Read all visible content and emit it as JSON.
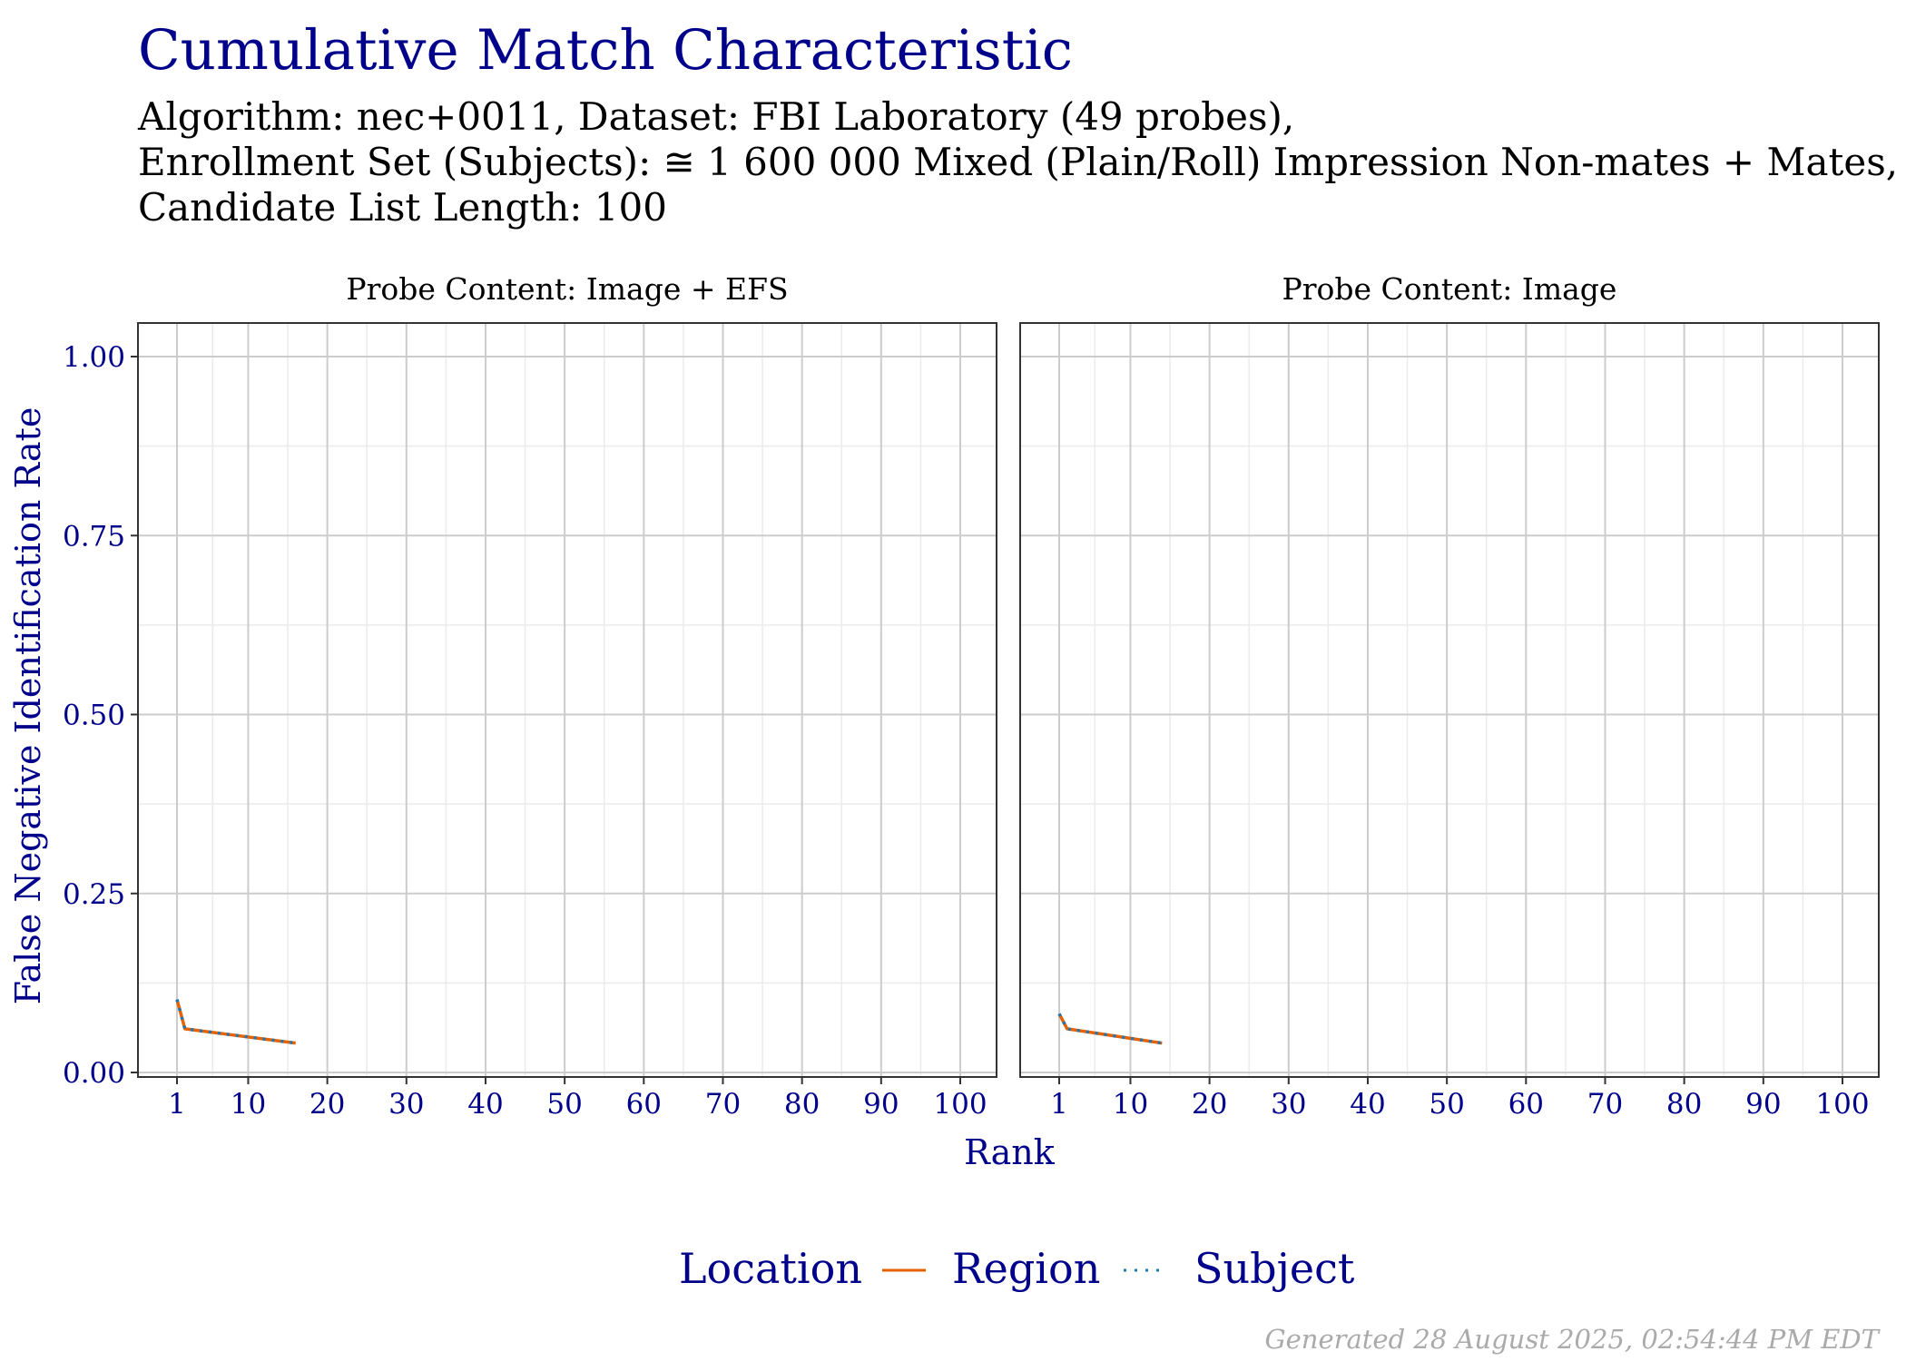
{
  "title": "Cumulative Match Characteristic",
  "subtitle_lines": [
    "Algorithm: nec+0011, Dataset: FBI Laboratory (49 probes),",
    "Enrollment Set (Subjects): ≅ 1 600 000 Mixed (Plain/Roll) Impression Non-mates + Mates,",
    "Candidate List Length: 100"
  ],
  "footer": "Generated 28 August 2025, 02:54:44 PM EDT",
  "colors": {
    "title": "#00008B",
    "text": "#000000",
    "axis_text": "#00008B",
    "footer": "#AAAAAA",
    "region": "#E66100",
    "subject": "#1F77B4",
    "grid_major": "#CCCCCC",
    "grid_minor": "#EBEBEB",
    "panel_border": "#333333"
  },
  "chart_data": {
    "type": "line",
    "xlabel": "Rank",
    "ylabel": "False Negative Identification Rate",
    "xlim": [
      1,
      100
    ],
    "ylim": [
      0,
      1
    ],
    "x_ticks": [
      1,
      10,
      20,
      30,
      40,
      50,
      60,
      70,
      80,
      90,
      100
    ],
    "y_ticks": [
      "0.00",
      "0.25",
      "0.50",
      "0.75",
      "1.00"
    ],
    "grid": true,
    "legend": {
      "title": "Location",
      "position": "bottom",
      "entries": [
        {
          "label": "Region",
          "style": "solid",
          "color_key": "region"
        },
        {
          "label": "Subject",
          "style": "dotted",
          "color_key": "subject"
        }
      ]
    },
    "panels": [
      {
        "strip": "Probe Content: Image + EFS",
        "series": [
          {
            "name": "Region",
            "x": [
              1,
              2,
              16
            ],
            "y": [
              0.102,
              0.061,
              0.041
            ]
          },
          {
            "name": "Subject",
            "x": [
              1,
              2,
              16
            ],
            "y": [
              0.102,
              0.061,
              0.041
            ]
          }
        ]
      },
      {
        "strip": "Probe Content: Image",
        "series": [
          {
            "name": "Region",
            "x": [
              1,
              2,
              14
            ],
            "y": [
              0.082,
              0.061,
              0.041
            ]
          },
          {
            "name": "Subject",
            "x": [
              1,
              2,
              14
            ],
            "y": [
              0.082,
              0.061,
              0.041
            ]
          }
        ]
      }
    ]
  }
}
